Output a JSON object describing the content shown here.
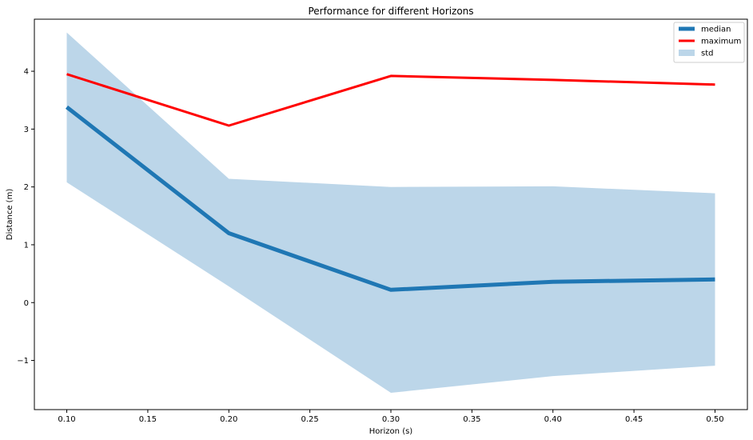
{
  "chart_data": {
    "type": "line",
    "title": "Performance for different Horizons",
    "xlabel": "Horizon (s)",
    "ylabel": "Distance (m)",
    "x": [
      0.1,
      0.2,
      0.3,
      0.4,
      0.5
    ],
    "xlim": [
      0.08,
      0.52
    ],
    "ylim": [
      -1.85,
      4.9
    ],
    "xticks": [
      0.1,
      0.15,
      0.2,
      0.25,
      0.3,
      0.35,
      0.4,
      0.45,
      0.5
    ],
    "xtick_labels": [
      "0.10",
      "0.15",
      "0.20",
      "0.25",
      "0.30",
      "0.35",
      "0.40",
      "0.45",
      "0.50"
    ],
    "yticks": [
      -1,
      0,
      1,
      2,
      3,
      4
    ],
    "ytick_labels": [
      "−1",
      "0",
      "1",
      "2",
      "3",
      "4"
    ],
    "series": [
      {
        "name": "median",
        "type": "line",
        "color": "#1f77b4",
        "values": [
          3.38,
          1.2,
          0.22,
          0.36,
          0.4
        ]
      },
      {
        "name": "maximum",
        "type": "line",
        "color": "#ff0000",
        "values": [
          3.95,
          3.06,
          3.92,
          3.85,
          3.77
        ]
      },
      {
        "name": "std",
        "type": "area",
        "color": "#bcd6e9",
        "lower": [
          2.08,
          0.28,
          -1.56,
          -1.27,
          -1.09
        ],
        "upper": [
          4.67,
          2.14,
          2.0,
          2.01,
          1.89
        ]
      }
    ],
    "legend": {
      "position": "top-right",
      "entries": [
        "median",
        "maximum",
        "std"
      ]
    },
    "grid": false
  }
}
